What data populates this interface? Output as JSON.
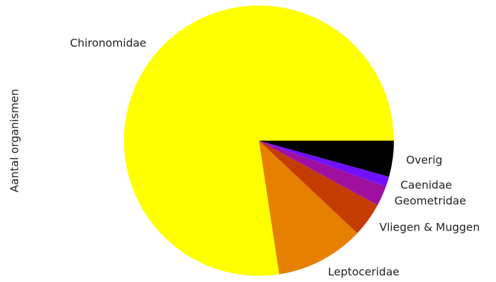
{
  "chart_data": {
    "type": "pie",
    "ylabel": "Aantal organismen",
    "categories": [
      "Chironomidae",
      "Leptoceridae",
      "Vliegen & Muggen",
      "Geometridae",
      "Caenidae",
      "Overig"
    ],
    "values": [
      77.4,
      10.6,
      4.1,
      2.4,
      1.2,
      4.3
    ],
    "colors": [
      "#ffff00",
      "#e58000",
      "#c43c00",
      "#a010a0",
      "#7010ff",
      "#000000"
    ]
  }
}
